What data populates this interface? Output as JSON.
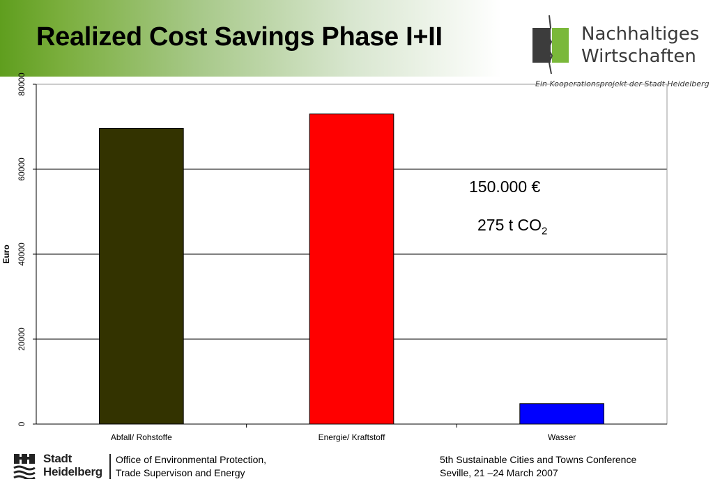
{
  "title": "Realized Cost Savings Phase I+II",
  "logo": {
    "line1": "Nachhaltiges",
    "line2": "Wirtschaften",
    "tagline": "Ein Kooperationsprojekt der Stadt Heidelberg",
    "colors": {
      "green": "#7ab83a",
      "dark": "#3c3c3c"
    }
  },
  "chart_data": {
    "type": "bar",
    "categories": [
      "Abfall/ Rohstoffe",
      "Energie/ Kraftstoff",
      "Wasser"
    ],
    "values": [
      69600,
      73000,
      4800
    ],
    "colors": [
      "#333300",
      "#ff0000",
      "#0000ff"
    ],
    "title": "",
    "xlabel": "",
    "ylabel": "Euro",
    "ylim": [
      0,
      80000
    ],
    "yticks": [
      0,
      20000,
      40000,
      60000,
      80000
    ],
    "grid": true,
    "legend": "none"
  },
  "annotations": {
    "total_savings": "150.000 €",
    "co2_prefix": "275 t CO",
    "co2_subscript": "2"
  },
  "footer": {
    "logo_line1": "Stadt",
    "logo_line2": "Heidelberg",
    "office_line1": "Office of Environmental Protection,",
    "office_line2": "Trade Supervison and Energy",
    "conference_line1": "5th Sustainable Cities and Towns Conference",
    "conference_line2": "Seville, 21 –24 March 2007"
  }
}
